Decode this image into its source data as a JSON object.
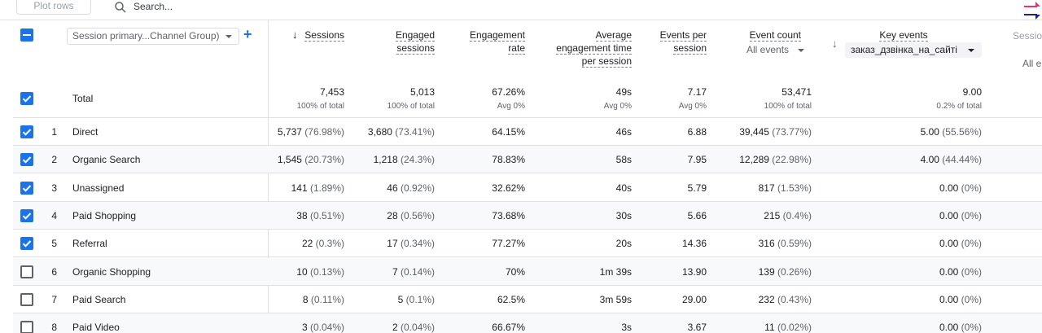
{
  "toolbar": {
    "plot_rows_label": "Plot rows",
    "search_placeholder": "Search..."
  },
  "header": {
    "dimension_select": "Session primary...Channel Group)",
    "columns": [
      {
        "key": "sessions",
        "label_lines": [
          "Sessions"
        ],
        "sorted": true
      },
      {
        "key": "engaged_sessions",
        "label_lines": [
          "Engaged",
          "sessions"
        ]
      },
      {
        "key": "engagement_rate",
        "label_lines": [
          "Engagement",
          "rate"
        ]
      },
      {
        "key": "avg_engagement_time",
        "label_lines": [
          "Average",
          "engagement time",
          "per session"
        ]
      },
      {
        "key": "events_per_session",
        "label_lines": [
          "Events per",
          "session"
        ]
      },
      {
        "key": "event_count",
        "label_lines": [
          "Event count"
        ],
        "sub_select": "All events"
      },
      {
        "key": "key_events",
        "label_lines": [
          "Key events"
        ],
        "sub_select": "заказ_дзвінка_на_сайті"
      },
      {
        "key": "session_clipped",
        "label_lines": [
          "Sessio"
        ],
        "sub_select": "All e"
      }
    ]
  },
  "total": {
    "label": "Total",
    "values": [
      "7,453",
      "5,013",
      "67.26%",
      "49s",
      "7.17",
      "53,471",
      "9.00"
    ],
    "subs": [
      "100% of total",
      "100% of total",
      "Avg 0%",
      "Avg 0%",
      "Avg 0%",
      "100% of total",
      "0.2% of total"
    ]
  },
  "rows": [
    {
      "n": "1",
      "label": "Direct",
      "checked": true,
      "sessions": "5,737",
      "sessions_pct": "(76.98%)",
      "engaged": "3,680",
      "engaged_pct": "(73.41%)",
      "rate": "64.15%",
      "time": "46s",
      "eps": "6.88",
      "events": "39,445",
      "events_pct": "(73.77%)",
      "key": "5.00",
      "key_pct": "(55.56%)"
    },
    {
      "n": "2",
      "label": "Organic Search",
      "checked": true,
      "sessions": "1,545",
      "sessions_pct": "(20.73%)",
      "engaged": "1,218",
      "engaged_pct": "(24.3%)",
      "rate": "78.83%",
      "time": "58s",
      "eps": "7.95",
      "events": "12,289",
      "events_pct": "(22.98%)",
      "key": "4.00",
      "key_pct": "(44.44%)"
    },
    {
      "n": "3",
      "label": "Unassigned",
      "checked": true,
      "sessions": "141",
      "sessions_pct": "(1.89%)",
      "engaged": "46",
      "engaged_pct": "(0.92%)",
      "rate": "32.62%",
      "time": "40s",
      "eps": "5.79",
      "events": "817",
      "events_pct": "(1.53%)",
      "key": "0.00",
      "key_pct": "(0%)"
    },
    {
      "n": "4",
      "label": "Paid Shopping",
      "checked": true,
      "sessions": "38",
      "sessions_pct": "(0.51%)",
      "engaged": "28",
      "engaged_pct": "(0.56%)",
      "rate": "73.68%",
      "time": "30s",
      "eps": "5.66",
      "events": "215",
      "events_pct": "(0.4%)",
      "key": "0.00",
      "key_pct": "(0%)"
    },
    {
      "n": "5",
      "label": "Referral",
      "checked": true,
      "sessions": "22",
      "sessions_pct": "(0.3%)",
      "engaged": "17",
      "engaged_pct": "(0.34%)",
      "rate": "77.27%",
      "time": "20s",
      "eps": "14.36",
      "events": "316",
      "events_pct": "(0.59%)",
      "key": "0.00",
      "key_pct": "(0%)"
    },
    {
      "n": "6",
      "label": "Organic Shopping",
      "checked": false,
      "sessions": "10",
      "sessions_pct": "(0.13%)",
      "engaged": "7",
      "engaged_pct": "(0.14%)",
      "rate": "70%",
      "time": "1m 39s",
      "eps": "13.90",
      "events": "139",
      "events_pct": "(0.26%)",
      "key": "0.00",
      "key_pct": "(0%)"
    },
    {
      "n": "7",
      "label": "Paid Search",
      "checked": false,
      "sessions": "8",
      "sessions_pct": "(0.11%)",
      "engaged": "5",
      "engaged_pct": "(0.1%)",
      "rate": "62.5%",
      "time": "3m 59s",
      "eps": "29.00",
      "events": "232",
      "events_pct": "(0.43%)",
      "key": "0.00",
      "key_pct": "(0%)"
    },
    {
      "n": "8",
      "label": "Paid Video",
      "checked": false,
      "sessions": "3",
      "sessions_pct": "(0.04%)",
      "engaged": "2",
      "engaged_pct": "(0.04%)",
      "rate": "66.67%",
      "time": "3s",
      "eps": "3.67",
      "events": "11",
      "events_pct": "(0.02%)",
      "key": "0.00",
      "key_pct": "(0%)"
    }
  ],
  "colors": {
    "accent": "#1a73e8",
    "compare_pink": "#e8336d",
    "compare_navy": "#1a237e"
  }
}
